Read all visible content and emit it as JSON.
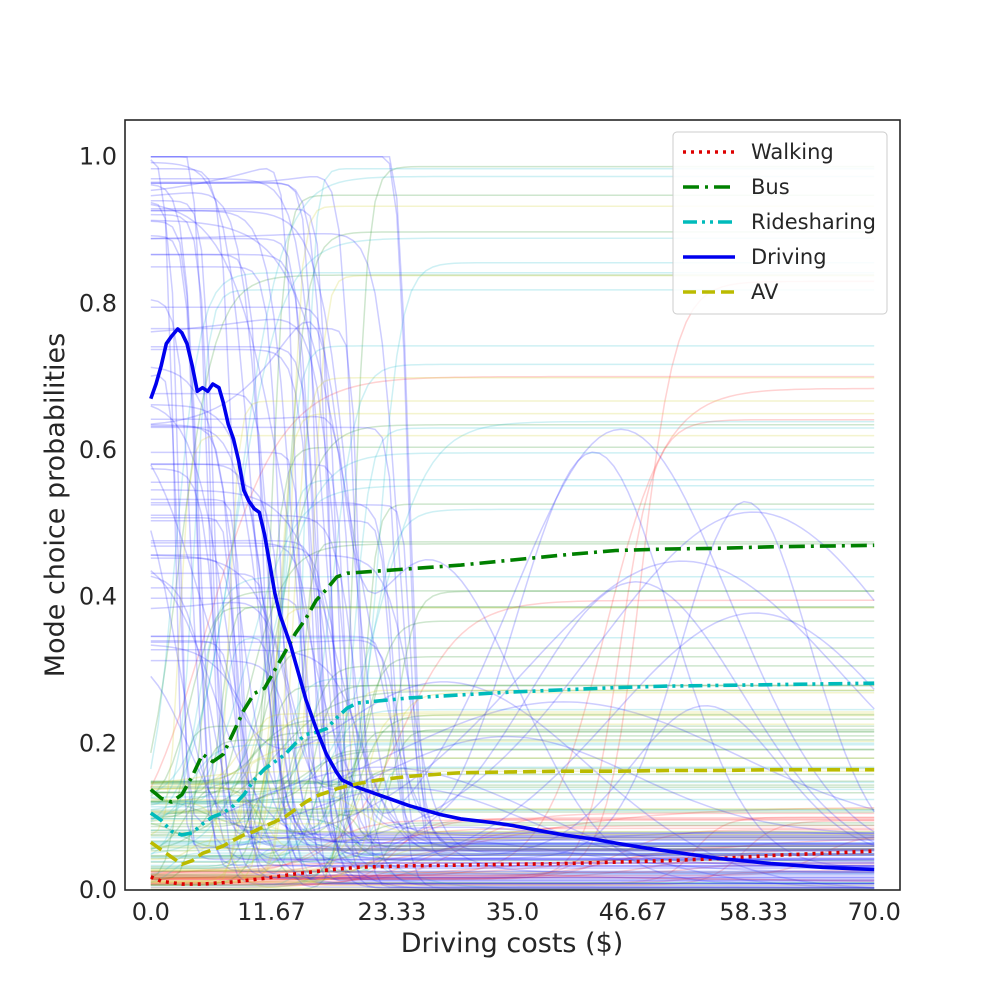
{
  "chart_data": {
    "type": "line",
    "title": "",
    "xlabel": "Driving costs ($)",
    "ylabel": "Mode choice probabilities",
    "xlim": [
      -2.5,
      72.5
    ],
    "ylim": [
      0,
      1.05
    ],
    "x_ticks": [
      "0.0",
      "11.67",
      "23.33",
      "35.0",
      "46.67",
      "58.33",
      "70.0"
    ],
    "y_ticks": [
      "0.0",
      "0.2",
      "0.4",
      "0.6",
      "0.8",
      "1.0"
    ],
    "grid": false,
    "legend_position": "top-right",
    "background_individual_lines": "many faint thin lines per mode, one per sampled individual",
    "series": [
      {
        "name": "Walking",
        "color": "#dd0000",
        "style": "dotted",
        "points": [
          [
            0,
            0.018
          ],
          [
            1,
            0.012
          ],
          [
            3,
            0.008
          ],
          [
            5,
            0.008
          ],
          [
            8,
            0.011
          ],
          [
            11,
            0.016
          ],
          [
            14,
            0.022
          ],
          [
            17,
            0.027
          ],
          [
            20,
            0.031
          ],
          [
            25,
            0.033
          ],
          [
            30,
            0.034
          ],
          [
            35,
            0.035
          ],
          [
            40,
            0.036
          ],
          [
            45,
            0.038
          ],
          [
            50,
            0.04
          ],
          [
            55,
            0.043
          ],
          [
            60,
            0.047
          ],
          [
            65,
            0.05
          ],
          [
            70,
            0.053
          ]
        ]
      },
      {
        "name": "Bus",
        "color": "#008000",
        "style": "dashdot",
        "points": [
          [
            0,
            0.137
          ],
          [
            1,
            0.125
          ],
          [
            2,
            0.12
          ],
          [
            3,
            0.13
          ],
          [
            4,
            0.155
          ],
          [
            5,
            0.185
          ],
          [
            6,
            0.175
          ],
          [
            7,
            0.185
          ],
          [
            8,
            0.215
          ],
          [
            9,
            0.245
          ],
          [
            10,
            0.268
          ],
          [
            11,
            0.275
          ],
          [
            12,
            0.3
          ],
          [
            13,
            0.325
          ],
          [
            14,
            0.35
          ],
          [
            15,
            0.37
          ],
          [
            16,
            0.395
          ],
          [
            17,
            0.41
          ],
          [
            18,
            0.427
          ],
          [
            19,
            0.432
          ],
          [
            20,
            0.433
          ],
          [
            25,
            0.438
          ],
          [
            30,
            0.443
          ],
          [
            35,
            0.45
          ],
          [
            40,
            0.457
          ],
          [
            45,
            0.463
          ],
          [
            50,
            0.465
          ],
          [
            55,
            0.466
          ],
          [
            60,
            0.468
          ],
          [
            65,
            0.469
          ],
          [
            70,
            0.47
          ]
        ]
      },
      {
        "name": "Ridesharing",
        "color": "#00bbbb",
        "style": "dashdotdot",
        "points": [
          [
            0,
            0.105
          ],
          [
            1,
            0.095
          ],
          [
            2,
            0.08
          ],
          [
            3,
            0.075
          ],
          [
            4,
            0.078
          ],
          [
            5,
            0.09
          ],
          [
            6,
            0.1
          ],
          [
            7,
            0.105
          ],
          [
            8,
            0.115
          ],
          [
            9,
            0.13
          ],
          [
            10,
            0.15
          ],
          [
            11,
            0.165
          ],
          [
            12,
            0.175
          ],
          [
            13,
            0.185
          ],
          [
            14,
            0.2
          ],
          [
            15,
            0.212
          ],
          [
            16,
            0.215
          ],
          [
            17,
            0.22
          ],
          [
            18,
            0.235
          ],
          [
            19,
            0.248
          ],
          [
            20,
            0.255
          ],
          [
            25,
            0.262
          ],
          [
            30,
            0.266
          ],
          [
            35,
            0.27
          ],
          [
            40,
            0.273
          ],
          [
            45,
            0.276
          ],
          [
            50,
            0.278
          ],
          [
            55,
            0.279
          ],
          [
            60,
            0.28
          ],
          [
            65,
            0.281
          ],
          [
            70,
            0.282
          ]
        ]
      },
      {
        "name": "Driving",
        "color": "#0000ee",
        "style": "solid",
        "points": [
          [
            0,
            0.67
          ],
          [
            0.5,
            0.69
          ],
          [
            1,
            0.715
          ],
          [
            1.5,
            0.745
          ],
          [
            2,
            0.755
          ],
          [
            2.6,
            0.765
          ],
          [
            3,
            0.76
          ],
          [
            3.5,
            0.745
          ],
          [
            4,
            0.715
          ],
          [
            4.5,
            0.68
          ],
          [
            5,
            0.685
          ],
          [
            5.5,
            0.68
          ],
          [
            6,
            0.69
          ],
          [
            6.6,
            0.685
          ],
          [
            7,
            0.665
          ],
          [
            7.5,
            0.635
          ],
          [
            8,
            0.615
          ],
          [
            8.5,
            0.585
          ],
          [
            9,
            0.545
          ],
          [
            9.5,
            0.53
          ],
          [
            10,
            0.52
          ],
          [
            10.5,
            0.515
          ],
          [
            11,
            0.485
          ],
          [
            11.5,
            0.445
          ],
          [
            12,
            0.405
          ],
          [
            12.5,
            0.375
          ],
          [
            13,
            0.355
          ],
          [
            13.5,
            0.335
          ],
          [
            14,
            0.31
          ],
          [
            14.5,
            0.285
          ],
          [
            15,
            0.26
          ],
          [
            15.5,
            0.24
          ],
          [
            16,
            0.22
          ],
          [
            17,
            0.185
          ],
          [
            18,
            0.16
          ],
          [
            18.5,
            0.15
          ],
          [
            20,
            0.14
          ],
          [
            22,
            0.13
          ],
          [
            25,
            0.115
          ],
          [
            28,
            0.103
          ],
          [
            30,
            0.097
          ],
          [
            33,
            0.092
          ],
          [
            35,
            0.088
          ],
          [
            38,
            0.08
          ],
          [
            40,
            0.075
          ],
          [
            43,
            0.069
          ],
          [
            45,
            0.064
          ],
          [
            48,
            0.057
          ],
          [
            50,
            0.053
          ],
          [
            53,
            0.047
          ],
          [
            55,
            0.043
          ],
          [
            58,
            0.039
          ],
          [
            60,
            0.036
          ],
          [
            63,
            0.033
          ],
          [
            65,
            0.031
          ],
          [
            68,
            0.029
          ],
          [
            70,
            0.028
          ]
        ]
      },
      {
        "name": "AV",
        "color": "#bbbb00",
        "style": "dashed",
        "points": [
          [
            0,
            0.065
          ],
          [
            1,
            0.055
          ],
          [
            2,
            0.045
          ],
          [
            3,
            0.035
          ],
          [
            4,
            0.04
          ],
          [
            5,
            0.05
          ],
          [
            6,
            0.055
          ],
          [
            7,
            0.06
          ],
          [
            8,
            0.068
          ],
          [
            9,
            0.075
          ],
          [
            10,
            0.08
          ],
          [
            11,
            0.087
          ],
          [
            12,
            0.093
          ],
          [
            13,
            0.1
          ],
          [
            14,
            0.11
          ],
          [
            15,
            0.12
          ],
          [
            16,
            0.128
          ],
          [
            17,
            0.133
          ],
          [
            18,
            0.138
          ],
          [
            19,
            0.142
          ],
          [
            20,
            0.145
          ],
          [
            22,
            0.15
          ],
          [
            25,
            0.155
          ],
          [
            28,
            0.158
          ],
          [
            30,
            0.16
          ],
          [
            35,
            0.161
          ],
          [
            40,
            0.162
          ],
          [
            45,
            0.162
          ],
          [
            50,
            0.163
          ],
          [
            55,
            0.163
          ],
          [
            60,
            0.164
          ],
          [
            65,
            0.164
          ],
          [
            70,
            0.164
          ]
        ]
      }
    ]
  }
}
